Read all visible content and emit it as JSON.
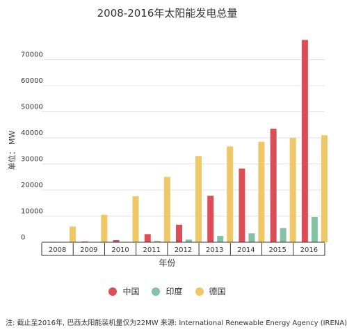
{
  "title": "2008-2016年太阳能发电总量",
  "note": "注: 截止至2016年, 巴西太阳能装机量仅为22MW   来源: International Renewable Energy Agency (IRENA)",
  "chart_data": {
    "type": "bar",
    "title": "2008-2016年太阳能发电总量",
    "xlabel": "年份",
    "ylabel": "单位： MW",
    "categories": [
      "2008",
      "2009",
      "2010",
      "2011",
      "2012",
      "2013",
      "2014",
      "2015",
      "2016"
    ],
    "ylim": [
      0,
      80000
    ],
    "yticks": [
      0,
      10000,
      20000,
      30000,
      40000,
      50000,
      60000,
      70000
    ],
    "grid": true,
    "legend_position": "bottom",
    "series": [
      {
        "name": "中国",
        "color": "#dc4e55",
        "values": [
          150,
          300,
          800,
          3100,
          6700,
          17800,
          28200,
          43500,
          77500
        ]
      },
      {
        "name": "印度",
        "color": "#85c1a4",
        "values": [
          50,
          100,
          150,
          500,
          1000,
          2400,
          3400,
          5400,
          9600
        ]
      },
      {
        "name": "德国",
        "color": "#eec866",
        "values": [
          6000,
          10500,
          17600,
          25000,
          33000,
          36700,
          38500,
          40000,
          41000
        ]
      }
    ]
  }
}
